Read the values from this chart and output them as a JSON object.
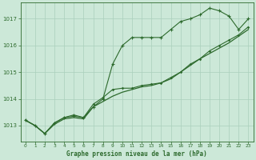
{
  "title": "Graphe pression niveau de la mer (hPa)",
  "bg_color": "#cce8d8",
  "grid_color": "#aacfbc",
  "line_color": "#2d6a2d",
  "xlim": [
    -0.5,
    23.5
  ],
  "ylim": [
    1012.4,
    1017.6
  ],
  "yticks": [
    1013,
    1014,
    1015,
    1016,
    1017
  ],
  "xticks": [
    0,
    1,
    2,
    3,
    4,
    5,
    6,
    7,
    8,
    9,
    10,
    11,
    12,
    13,
    14,
    15,
    16,
    17,
    18,
    19,
    20,
    21,
    22,
    23
  ],
  "series1_y": [
    1013.2,
    1013.0,
    1012.7,
    1013.1,
    1013.3,
    1013.4,
    1013.3,
    1013.7,
    1014.0,
    1015.3,
    1016.0,
    1016.3,
    1016.3,
    1016.3,
    1016.3,
    1016.6,
    1016.9,
    1017.0,
    1017.15,
    1017.4,
    1017.3,
    1017.1,
    1016.6,
    1017.0
  ],
  "series2_y": [
    1013.2,
    1013.0,
    1012.7,
    1013.1,
    1013.3,
    1013.35,
    1013.3,
    1013.8,
    1014.05,
    1014.35,
    1014.4,
    1014.4,
    1014.5,
    1014.55,
    1014.6,
    1014.8,
    1015.0,
    1015.3,
    1015.5,
    1015.8,
    1016.0,
    1016.2,
    1016.4,
    1016.7
  ],
  "series3_y": [
    1013.2,
    1013.0,
    1012.7,
    1013.05,
    1013.25,
    1013.3,
    1013.25,
    1013.7,
    1013.9,
    1014.1,
    1014.25,
    1014.35,
    1014.45,
    1014.5,
    1014.6,
    1014.75,
    1015.0,
    1015.25,
    1015.5,
    1015.7,
    1015.9,
    1016.1,
    1016.35,
    1016.6
  ]
}
